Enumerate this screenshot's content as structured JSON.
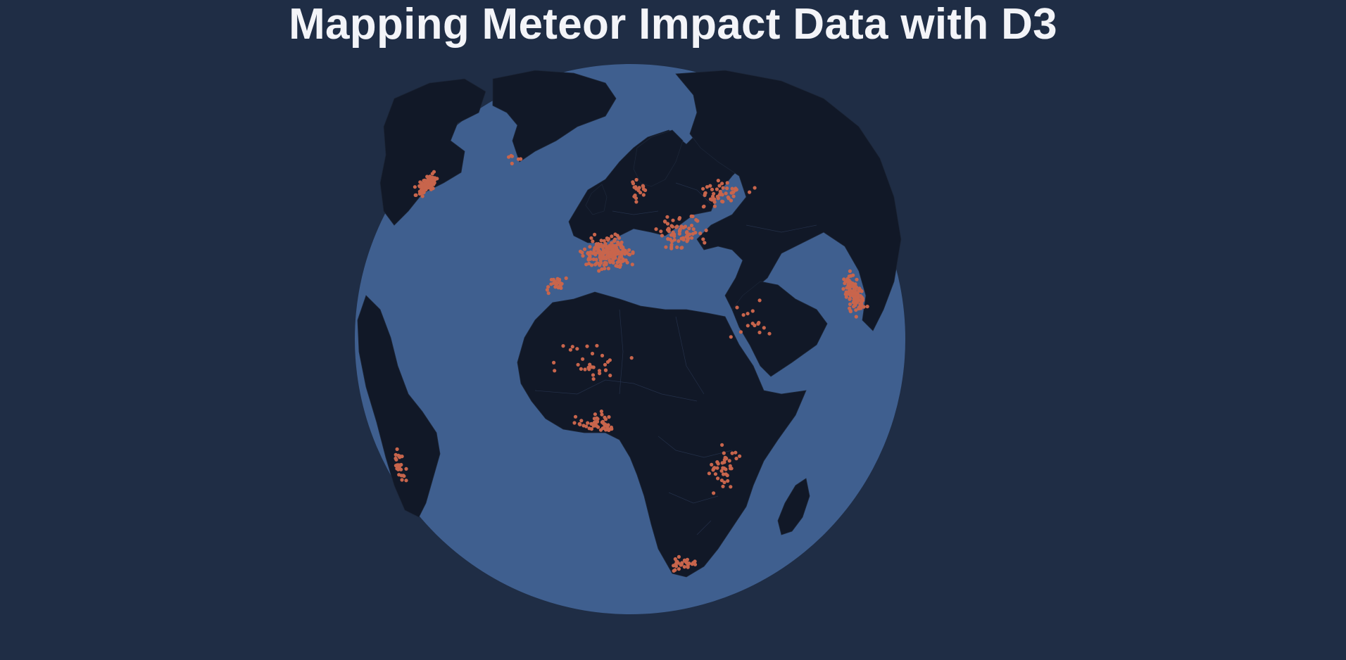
{
  "title": "Mapping Meteor Impact Data with D3",
  "colors": {
    "background": "#1f2d45",
    "ocean": "#3f5f8f",
    "land": "#111827",
    "impact_marker": "#c8654c",
    "title": "#f3f4f8"
  },
  "map": {
    "projection": "orthographic",
    "rotation_center_lon_lat": [
      15,
      30
    ]
  },
  "impact_clusters": [
    {
      "region": "north-america-east",
      "lon": -72,
      "lat": 42,
      "spread": [
        6,
        4
      ],
      "count": 85
    },
    {
      "region": "greenland-coast",
      "lon": -48,
      "lat": 62,
      "spread": [
        6,
        3
      ],
      "count": 6
    },
    {
      "region": "western-europe",
      "lon": 8,
      "lat": 48,
      "spread": [
        10,
        5
      ],
      "count": 200
    },
    {
      "region": "eastern-europe",
      "lon": 32,
      "lat": 52,
      "spread": [
        12,
        5
      ],
      "count": 70
    },
    {
      "region": "iberia",
      "lon": -5,
      "lat": 40,
      "spread": [
        4,
        3
      ],
      "count": 25
    },
    {
      "region": "scandinavia",
      "lon": 18,
      "lat": 62,
      "spread": [
        6,
        4
      ],
      "count": 18
    },
    {
      "region": "russia",
      "lon": 55,
      "lat": 58,
      "spread": [
        15,
        5
      ],
      "count": 45
    },
    {
      "region": "india",
      "lon": 79,
      "lat": 25,
      "spread": [
        5,
        6
      ],
      "count": 110
    },
    {
      "region": "middle-east",
      "lon": 45,
      "lat": 30,
      "spread": [
        8,
        5
      ],
      "count": 15
    },
    {
      "region": "sahara",
      "lon": 5,
      "lat": 25,
      "spread": [
        12,
        6
      ],
      "count": 30
    },
    {
      "region": "west-africa",
      "lon": 8,
      "lat": 12,
      "spread": [
        7,
        3
      ],
      "count": 45
    },
    {
      "region": "east-africa",
      "lon": 35,
      "lat": 0,
      "spread": [
        5,
        8
      ],
      "count": 40
    },
    {
      "region": "southern-africa",
      "lon": 27,
      "lat": -26,
      "spread": [
        6,
        4
      ],
      "count": 30
    },
    {
      "region": "south-america-east",
      "lon": -45,
      "lat": -15,
      "spread": [
        4,
        8
      ],
      "count": 25
    }
  ]
}
